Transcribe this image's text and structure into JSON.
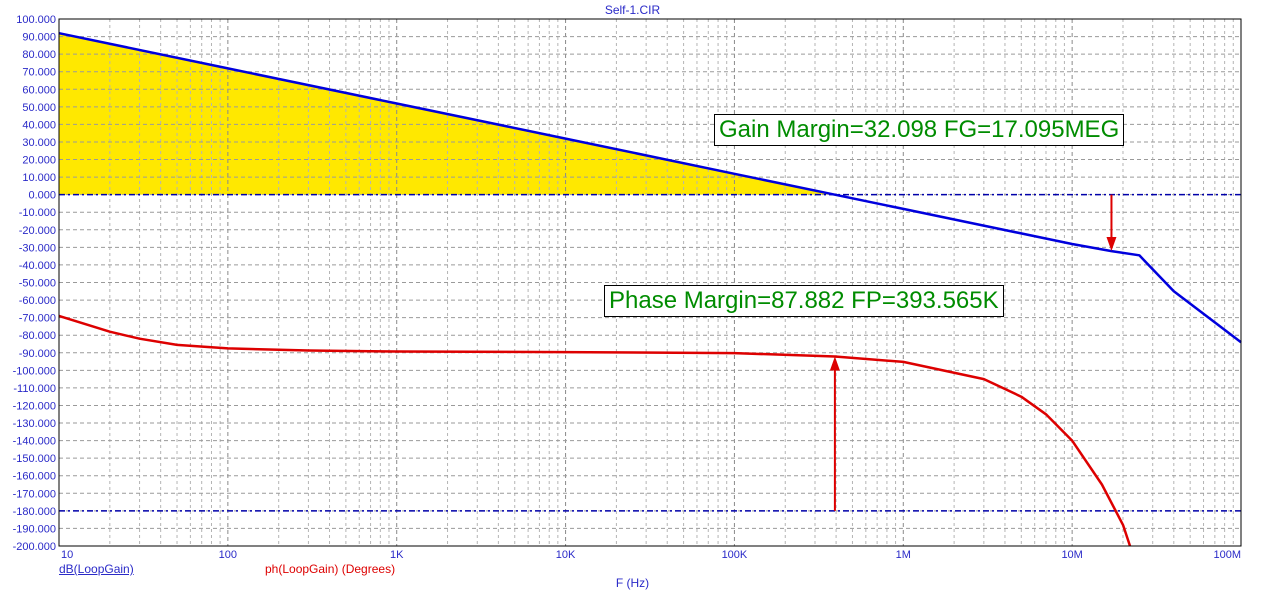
{
  "chart_data": {
    "type": "line",
    "title": "Self-1.CIR",
    "xlabel": "F (Hz)",
    "x_scale": "log",
    "xlim": [
      10,
      100000000
    ],
    "ylim": [
      -200,
      100
    ],
    "x_tick_labels": [
      "10",
      "100",
      "1K",
      "10K",
      "100K",
      "1M",
      "10M",
      "100M"
    ],
    "y_tick_labels": [
      "100.000",
      "90.000",
      "80.000",
      "70.000",
      "60.000",
      "50.000",
      "40.000",
      "30.000",
      "20.000",
      "10.000",
      "0.000",
      "-10.000",
      "-20.000",
      "-30.000",
      "-40.000",
      "-50.000",
      "-60.000",
      "-70.000",
      "-80.000",
      "-90.000",
      "-100.000",
      "-110.000",
      "-120.000",
      "-130.000",
      "-140.000",
      "-150.000",
      "-160.000",
      "-170.000",
      "-180.000",
      "-190.000",
      "-200.000"
    ],
    "grid": true,
    "series": [
      {
        "name": "dB(LoopGain)",
        "color": "#0000dd",
        "x": [
          10,
          100,
          1000,
          10000,
          100000,
          393565,
          1000000,
          10000000,
          17095000,
          25000000,
          40000000,
          100000000
        ],
        "y": [
          91.9,
          71.9,
          51.9,
          31.9,
          11.9,
          0.0,
          -8.1,
          -28.1,
          -32.1,
          -34.5,
          -55,
          -84
        ]
      },
      {
        "name": "ph(LoopGain) (Degrees)",
        "color": "#dd0000",
        "x": [
          10,
          20,
          30,
          50,
          100,
          300,
          1000,
          10000,
          100000,
          393565,
          1000000,
          3000000,
          5000000,
          7000000,
          10000000,
          15000000,
          20000000,
          22000000
        ],
        "y": [
          -69,
          -78,
          -82,
          -85.5,
          -87.5,
          -88.7,
          -89.3,
          -89.6,
          -90.2,
          -92.1,
          -95.2,
          -105,
          -115,
          -125,
          -140,
          -165,
          -188,
          -200
        ]
      }
    ],
    "reference_lines": [
      {
        "y": 0,
        "color": "#0000aa"
      },
      {
        "y": -180,
        "color": "#0000aa"
      }
    ],
    "annotations": [
      {
        "text": "Gain Margin=32.098 FG=17.095MEG",
        "arrow_x": 17095000,
        "arrow_from": 0,
        "arrow_to": -32.098
      },
      {
        "text": "Phase Margin=87.882 FP=393.565K",
        "arrow_x": 393565,
        "arrow_from": -180,
        "arrow_to": -92.118
      }
    ],
    "fill_color": "#ffe800",
    "annotation_color": "#008c00",
    "arrow_color": "#dd0000"
  }
}
